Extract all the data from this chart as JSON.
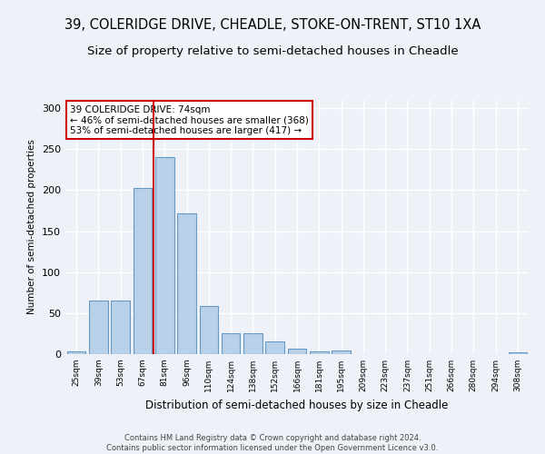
{
  "title1": "39, COLERIDGE DRIVE, CHEADLE, STOKE-ON-TRENT, ST10 1XA",
  "title2": "Size of property relative to semi-detached houses in Cheadle",
  "xlabel": "Distribution of semi-detached houses by size in Cheadle",
  "ylabel": "Number of semi-detached properties",
  "categories": [
    "25sqm",
    "39sqm",
    "53sqm",
    "67sqm",
    "81sqm",
    "96sqm",
    "110sqm",
    "124sqm",
    "138sqm",
    "152sqm",
    "166sqm",
    "181sqm",
    "195sqm",
    "209sqm",
    "223sqm",
    "237sqm",
    "251sqm",
    "266sqm",
    "280sqm",
    "294sqm",
    "308sqm"
  ],
  "values": [
    3,
    65,
    65,
    203,
    240,
    172,
    59,
    25,
    25,
    15,
    7,
    3,
    4,
    0,
    0,
    0,
    0,
    0,
    0,
    0,
    2
  ],
  "bar_color": "#b8d0e8",
  "bar_edge_color": "#6899c4",
  "red_line_color": "#cc0000",
  "annotation_box_color": "#ffffff",
  "annotation_box_edge": "#cc0000",
  "annotation_text1": "39 COLERIDGE DRIVE: 74sqm",
  "annotation_text2": "← 46% of semi-detached houses are smaller (368)",
  "annotation_text3": "53% of semi-detached houses are larger (417) →",
  "ylim": [
    0,
    310
  ],
  "yticks": [
    0,
    50,
    100,
    150,
    200,
    250,
    300
  ],
  "footer1": "Contains HM Land Registry data © Crown copyright and database right 2024.",
  "footer2": "Contains public sector information licensed under the Open Government Licence v3.0.",
  "background_color": "#eef2f8",
  "grid_color": "#ffffff",
  "title1_fontsize": 10.5,
  "title2_fontsize": 9.5,
  "ylabel_fontsize": 7.5,
  "xlabel_fontsize": 8.5,
  "tick_fontsize": 6.5,
  "ytick_fontsize": 8,
  "ann_fontsize": 7.5,
  "footer_fontsize": 6.0
}
